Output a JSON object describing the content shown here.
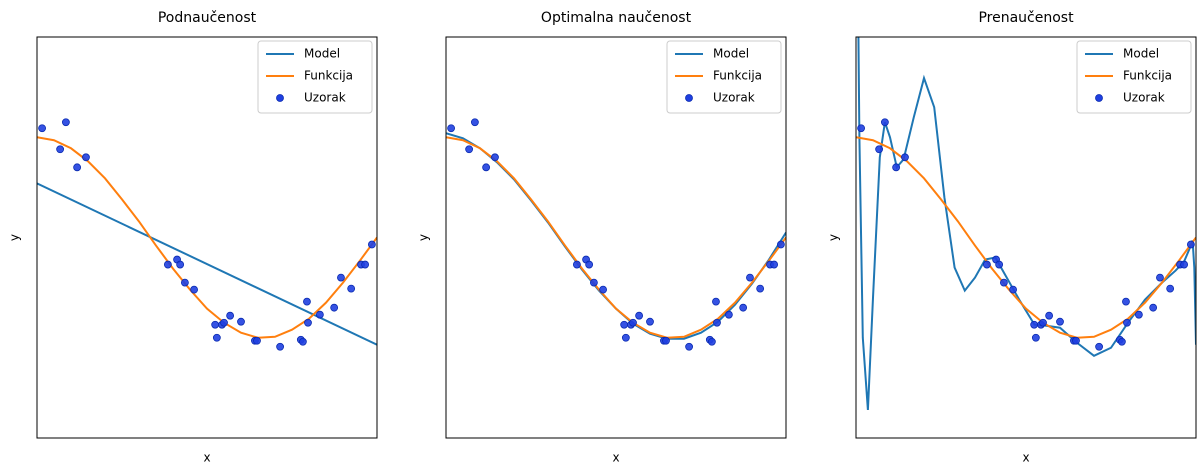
{
  "chart_data": [
    {
      "type": "line",
      "title": "Podnaučenost",
      "xlabel": "x",
      "ylabel": "y",
      "xlim": [
        0,
        1
      ],
      "ylim": [
        -2,
        2
      ],
      "legend": "upper right",
      "series": [
        {
          "name": "Model",
          "type": "line",
          "color": "#1f77b4",
          "x": [
            0,
            1
          ],
          "values": [
            0.54,
            -1.07
          ]
        },
        {
          "name": "Funkcija",
          "type": "line",
          "color": "#ff7f0e",
          "x": [
            0,
            0.05,
            0.1,
            0.15,
            0.2,
            0.25,
            0.3,
            0.35,
            0.4,
            0.45,
            0.5,
            0.55,
            0.6,
            0.65,
            0.7,
            0.75,
            0.8,
            0.85,
            0.9,
            0.95,
            1
          ],
          "values": [
            1,
            0.97,
            0.89,
            0.76,
            0.59,
            0.38,
            0.16,
            -0.08,
            -0.31,
            -0.52,
            -0.71,
            -0.85,
            -0.95,
            -1.0,
            -0.99,
            -0.92,
            -0.81,
            -0.65,
            -0.45,
            -0.23,
            0
          ]
        },
        {
          "name": "Uzorak",
          "type": "scatter",
          "color": "#1f3fe0",
          "x": [
            0.015,
            0.068,
            0.085,
            0.118,
            0.144,
            0.385,
            0.412,
            0.421,
            0.435,
            0.462,
            0.524,
            0.529,
            0.544,
            0.55,
            0.568,
            0.6,
            0.641,
            0.647,
            0.715,
            0.776,
            0.782,
            0.794,
            0.797,
            0.832,
            0.874,
            0.894,
            0.924,
            0.953,
            0.965,
            0.985
          ],
          "values": [
            1.09,
            0.88,
            1.15,
            0.7,
            0.8,
            -0.27,
            -0.22,
            -0.27,
            -0.45,
            -0.52,
            -0.87,
            -1.0,
            -0.87,
            -0.85,
            -0.78,
            -0.84,
            -1.03,
            -1.03,
            -1.09,
            -1.02,
            -1.04,
            -0.64,
            -0.85,
            -0.77,
            -0.7,
            -0.4,
            -0.51,
            -0.27,
            -0.27,
            -0.07
          ]
        }
      ]
    },
    {
      "type": "line",
      "title": "Optimalna naučenost",
      "xlabel": "x",
      "ylabel": "y",
      "xlim": [
        0,
        1
      ],
      "ylim": [
        -2,
        2
      ],
      "legend": "upper right",
      "series": [
        {
          "name": "Model",
          "type": "line",
          "color": "#1f77b4",
          "x": [
            0,
            0.05,
            0.1,
            0.15,
            0.2,
            0.25,
            0.3,
            0.35,
            0.4,
            0.45,
            0.5,
            0.55,
            0.6,
            0.65,
            0.7,
            0.75,
            0.8,
            0.85,
            0.9,
            0.95,
            1
          ],
          "values": [
            1.04,
            0.99,
            0.89,
            0.75,
            0.58,
            0.37,
            0.15,
            -0.09,
            -0.32,
            -0.53,
            -0.71,
            -0.86,
            -0.96,
            -1.01,
            -1.01,
            -0.95,
            -0.84,
            -0.67,
            -0.46,
            -0.22,
            0.05
          ]
        },
        {
          "name": "Funkcija",
          "type": "line",
          "color": "#ff7f0e",
          "x": [
            0,
            0.05,
            0.1,
            0.15,
            0.2,
            0.25,
            0.3,
            0.35,
            0.4,
            0.45,
            0.5,
            0.55,
            0.6,
            0.65,
            0.7,
            0.75,
            0.8,
            0.85,
            0.9,
            0.95,
            1
          ],
          "values": [
            1,
            0.97,
            0.89,
            0.76,
            0.59,
            0.38,
            0.16,
            -0.08,
            -0.31,
            -0.52,
            -0.71,
            -0.85,
            -0.95,
            -1.0,
            -0.99,
            -0.92,
            -0.81,
            -0.65,
            -0.45,
            -0.23,
            0
          ]
        },
        {
          "name": "Uzorak",
          "type": "scatter",
          "color": "#1f3fe0",
          "x": [
            0.015,
            0.068,
            0.085,
            0.118,
            0.144,
            0.385,
            0.412,
            0.421,
            0.435,
            0.462,
            0.524,
            0.529,
            0.544,
            0.55,
            0.568,
            0.6,
            0.641,
            0.647,
            0.715,
            0.776,
            0.782,
            0.794,
            0.797,
            0.832,
            0.874,
            0.894,
            0.924,
            0.953,
            0.965,
            0.985
          ],
          "values": [
            1.09,
            0.88,
            1.15,
            0.7,
            0.8,
            -0.27,
            -0.22,
            -0.27,
            -0.45,
            -0.52,
            -0.87,
            -1.0,
            -0.87,
            -0.85,
            -0.78,
            -0.84,
            -1.03,
            -1.03,
            -1.09,
            -1.02,
            -1.04,
            -0.64,
            -0.85,
            -0.77,
            -0.7,
            -0.4,
            -0.51,
            -0.27,
            -0.27,
            -0.07
          ]
        }
      ]
    },
    {
      "type": "line",
      "title": "Prenaučenost",
      "xlabel": "x",
      "ylabel": "y",
      "xlim": [
        0,
        1
      ],
      "ylim": [
        -2,
        2
      ],
      "legend": "upper right",
      "series": [
        {
          "name": "Model",
          "type": "line",
          "color": "#1f77b4",
          "x": [
            0,
            0.01,
            0.02,
            0.035,
            0.05,
            0.07,
            0.085,
            0.1,
            0.12,
            0.14,
            0.17,
            0.2,
            0.23,
            0.26,
            0.29,
            0.32,
            0.35,
            0.38,
            0.41,
            0.44,
            0.48,
            0.525,
            0.56,
            0.6,
            0.65,
            0.7,
            0.75,
            0.8,
            0.85,
            0.9,
            0.94,
            0.965,
            0.98,
            0.99,
            0.995,
            1
          ],
          "values": [
            4.5,
            1.0,
            -1.0,
            -1.72,
            -0.6,
            0.8,
            1.15,
            1.0,
            0.7,
            0.78,
            1.2,
            1.59,
            1.3,
            0.4,
            -0.3,
            -0.53,
            -0.4,
            -0.22,
            -0.2,
            -0.38,
            -0.62,
            -0.87,
            -0.88,
            -0.9,
            -1.05,
            -1.18,
            -1.1,
            -0.85,
            -0.62,
            -0.45,
            -0.33,
            -0.24,
            -0.12,
            -0.03,
            -0.3,
            -1.07
          ]
        },
        {
          "name": "Funkcija",
          "type": "line",
          "color": "#ff7f0e",
          "x": [
            0,
            0.05,
            0.1,
            0.15,
            0.2,
            0.25,
            0.3,
            0.35,
            0.4,
            0.45,
            0.5,
            0.55,
            0.6,
            0.65,
            0.7,
            0.75,
            0.8,
            0.85,
            0.9,
            0.95,
            1
          ],
          "values": [
            1,
            0.97,
            0.89,
            0.76,
            0.59,
            0.38,
            0.16,
            -0.08,
            -0.31,
            -0.52,
            -0.71,
            -0.85,
            -0.95,
            -1.0,
            -0.99,
            -0.92,
            -0.81,
            -0.65,
            -0.45,
            -0.23,
            0
          ]
        },
        {
          "name": "Uzorak",
          "type": "scatter",
          "color": "#1f3fe0",
          "x": [
            0.015,
            0.068,
            0.085,
            0.118,
            0.144,
            0.385,
            0.412,
            0.421,
            0.435,
            0.462,
            0.524,
            0.529,
            0.544,
            0.55,
            0.568,
            0.6,
            0.641,
            0.647,
            0.715,
            0.776,
            0.782,
            0.794,
            0.797,
            0.832,
            0.874,
            0.894,
            0.924,
            0.953,
            0.965,
            0.985
          ],
          "values": [
            1.09,
            0.88,
            1.15,
            0.7,
            0.8,
            -0.27,
            -0.22,
            -0.27,
            -0.45,
            -0.52,
            -0.87,
            -1.0,
            -0.87,
            -0.85,
            -0.78,
            -0.84,
            -1.03,
            -1.03,
            -1.09,
            -1.02,
            -1.04,
            -0.64,
            -0.85,
            -0.77,
            -0.7,
            -0.4,
            -0.51,
            -0.27,
            -0.27,
            -0.07
          ]
        }
      ]
    }
  ]
}
